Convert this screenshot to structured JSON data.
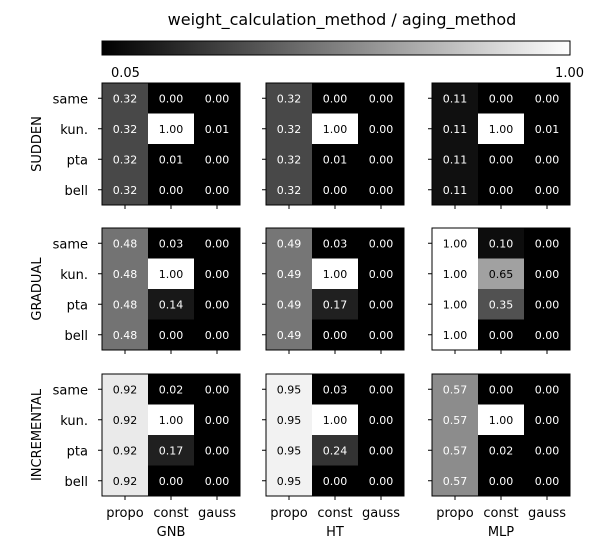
{
  "chart_data": {
    "type": "heatmap",
    "title": "weight_calculation_method / aging_method",
    "colorbar": {
      "min": 0.05,
      "max": 1.0,
      "min_label": "0.05",
      "max_label": "1.00",
      "colormap": "gray"
    },
    "row_labels": [
      "same",
      "kun.",
      "pta",
      "bell"
    ],
    "col_labels": [
      "propo",
      "const",
      "gauss"
    ],
    "row_groups": [
      "SUDDEN",
      "GRADUAL",
      "INCREMENTAL"
    ],
    "col_groups": [
      "GNB",
      "HT",
      "MLP"
    ],
    "cells": [
      [
        [
          [
            0.32,
            0.0,
            0.0
          ],
          [
            0.32,
            1.0,
            0.01
          ],
          [
            0.32,
            0.01,
            0.0
          ],
          [
            0.32,
            0.0,
            0.0
          ]
        ],
        [
          [
            0.32,
            0.0,
            0.0
          ],
          [
            0.32,
            1.0,
            0.0
          ],
          [
            0.32,
            0.01,
            0.0
          ],
          [
            0.32,
            0.0,
            0.0
          ]
        ],
        [
          [
            0.11,
            0.0,
            0.0
          ],
          [
            0.11,
            1.0,
            0.01
          ],
          [
            0.11,
            0.0,
            0.0
          ],
          [
            0.11,
            0.0,
            0.0
          ]
        ]
      ],
      [
        [
          [
            0.48,
            0.03,
            0.0
          ],
          [
            0.48,
            1.0,
            0.0
          ],
          [
            0.48,
            0.14,
            0.0
          ],
          [
            0.48,
            0.0,
            0.0
          ]
        ],
        [
          [
            0.49,
            0.03,
            0.0
          ],
          [
            0.49,
            1.0,
            0.0
          ],
          [
            0.49,
            0.17,
            0.0
          ],
          [
            0.49,
            0.0,
            0.0
          ]
        ],
        [
          [
            1.0,
            0.1,
            0.0
          ],
          [
            1.0,
            0.65,
            0.0
          ],
          [
            1.0,
            0.35,
            0.0
          ],
          [
            1.0,
            0.0,
            0.0
          ]
        ]
      ],
      [
        [
          [
            0.92,
            0.02,
            0.0
          ],
          [
            0.92,
            1.0,
            0.0
          ],
          [
            0.92,
            0.17,
            0.0
          ],
          [
            0.92,
            0.0,
            0.0
          ]
        ],
        [
          [
            0.95,
            0.03,
            0.0
          ],
          [
            0.95,
            1.0,
            0.0
          ],
          [
            0.95,
            0.24,
            0.0
          ],
          [
            0.95,
            0.0,
            0.0
          ]
        ],
        [
          [
            0.57,
            0.0,
            0.0
          ],
          [
            0.57,
            1.0,
            0.0
          ],
          [
            0.57,
            0.02,
            0.0
          ],
          [
            0.57,
            0.0,
            0.0
          ]
        ]
      ]
    ]
  }
}
